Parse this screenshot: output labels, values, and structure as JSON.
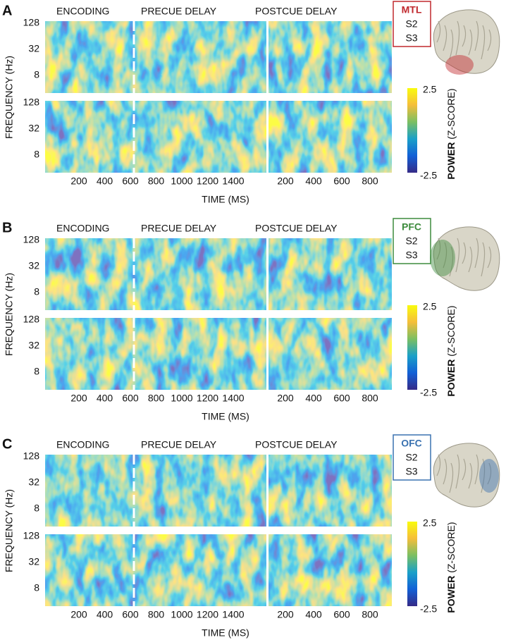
{
  "panels": [
    {
      "letter": "A",
      "headers": [
        "ENCODING",
        "PRECUE DELAY",
        "POSTCUE DELAY"
      ],
      "region": "MTL",
      "region_color": "#c0282d",
      "subjects": [
        "S2",
        "S3"
      ],
      "yticks": [
        "128",
        "32",
        "8"
      ],
      "ylabel": "FREQUENCY (Hz)",
      "xticks_left": [
        "200",
        "400",
        "600",
        "800",
        "1000",
        "1200",
        "1400"
      ],
      "xticks_right": [
        "200",
        "400",
        "600",
        "800"
      ],
      "xlabel": "TIME (MS)",
      "colorbar_max": "2.5",
      "colorbar_min": "-2.5",
      "colorbar_title": "POWER",
      "colorbar_unit": "(Z-SCORE)"
    },
    {
      "letter": "B",
      "headers": [
        "ENCODING",
        "PRECUE DELAY",
        "POSTCUE DELAY"
      ],
      "region": "PFC",
      "region_color": "#3d8b3d",
      "subjects": [
        "S2",
        "S3"
      ],
      "yticks": [
        "128",
        "32",
        "8"
      ],
      "ylabel": "FREQUENCY (Hz)",
      "xticks_left": [
        "200",
        "400",
        "600",
        "800",
        "1000",
        "1200",
        "1400"
      ],
      "xticks_right": [
        "200",
        "400",
        "600",
        "800"
      ],
      "xlabel": "TIME (MS)",
      "colorbar_max": "2.5",
      "colorbar_min": "-2.5",
      "colorbar_title": "POWER",
      "colorbar_unit": "(Z-SCORE)"
    },
    {
      "letter": "C",
      "headers": [
        "ENCODING",
        "PRECUE DELAY",
        "POSTCUE DELAY"
      ],
      "region": "OFC",
      "region_color": "#3a72b0",
      "subjects": [
        "S2",
        "S3"
      ],
      "yticks": [
        "128",
        "32",
        "8"
      ],
      "ylabel": "FREQUENCY (Hz)",
      "xticks_left": [
        "200",
        "400",
        "600",
        "800",
        "1000",
        "1200",
        "1400"
      ],
      "xticks_right": [
        "200",
        "400",
        "600",
        "800"
      ],
      "xlabel": "TIME (MS)",
      "colorbar_max": "2.5",
      "colorbar_min": "-2.5",
      "colorbar_title": "POWER",
      "colorbar_unit": "(Z-SCORE)"
    }
  ]
}
